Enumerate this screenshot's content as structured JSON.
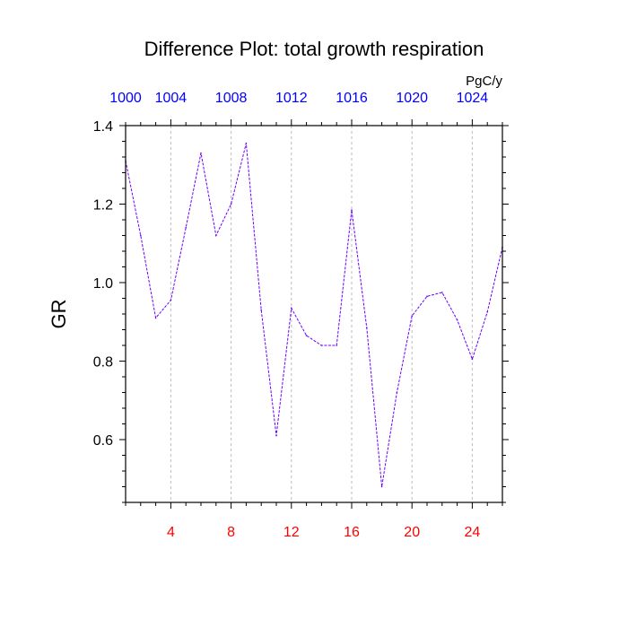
{
  "chart_data": {
    "type": "line",
    "title": "Difference Plot: total growth respiration",
    "ylabel": "GR",
    "top_axis_unit": "PgC/y",
    "xlim": [
      1,
      26
    ],
    "ylim": [
      0.44,
      1.4
    ],
    "x_ticks": [
      4,
      8,
      12,
      16,
      20,
      24
    ],
    "x_tick_labels": [
      "4",
      "8",
      "12",
      "16",
      "20",
      "24"
    ],
    "top_ticks": [
      1,
      4,
      8,
      12,
      16,
      20,
      24,
      26
    ],
    "top_tick_labels": [
      "1000",
      "1004",
      "1008",
      "1012",
      "1016",
      "1020",
      "1024"
    ],
    "top_tick_positions": [
      1,
      4,
      8,
      12,
      16,
      20,
      24
    ],
    "y_ticks": [
      0.6,
      0.8,
      1.0,
      1.2,
      1.4
    ],
    "y_tick_labels": [
      "0.6",
      "0.8",
      "1.0",
      "1.2",
      "1.4"
    ],
    "grid_x": true,
    "bottom_label_color": "#ff0000",
    "top_label_color": "#0000ff",
    "line_color": "#6a00ff",
    "series": [
      {
        "x": [
          1,
          2,
          3,
          4,
          5,
          6,
          7,
          8,
          9,
          10,
          11,
          12,
          13,
          14,
          15,
          16,
          17,
          18,
          19,
          20,
          21,
          22,
          23,
          24,
          25,
          26
        ],
        "values": [
          1.31,
          1.12,
          0.91,
          0.955,
          1.14,
          1.33,
          1.12,
          1.2,
          1.355,
          0.93,
          0.61,
          0.935,
          0.865,
          0.84,
          0.84,
          1.185,
          0.885,
          0.48,
          0.72,
          0.915,
          0.965,
          0.975,
          0.905,
          0.805,
          0.925,
          1.09
        ]
      }
    ]
  }
}
